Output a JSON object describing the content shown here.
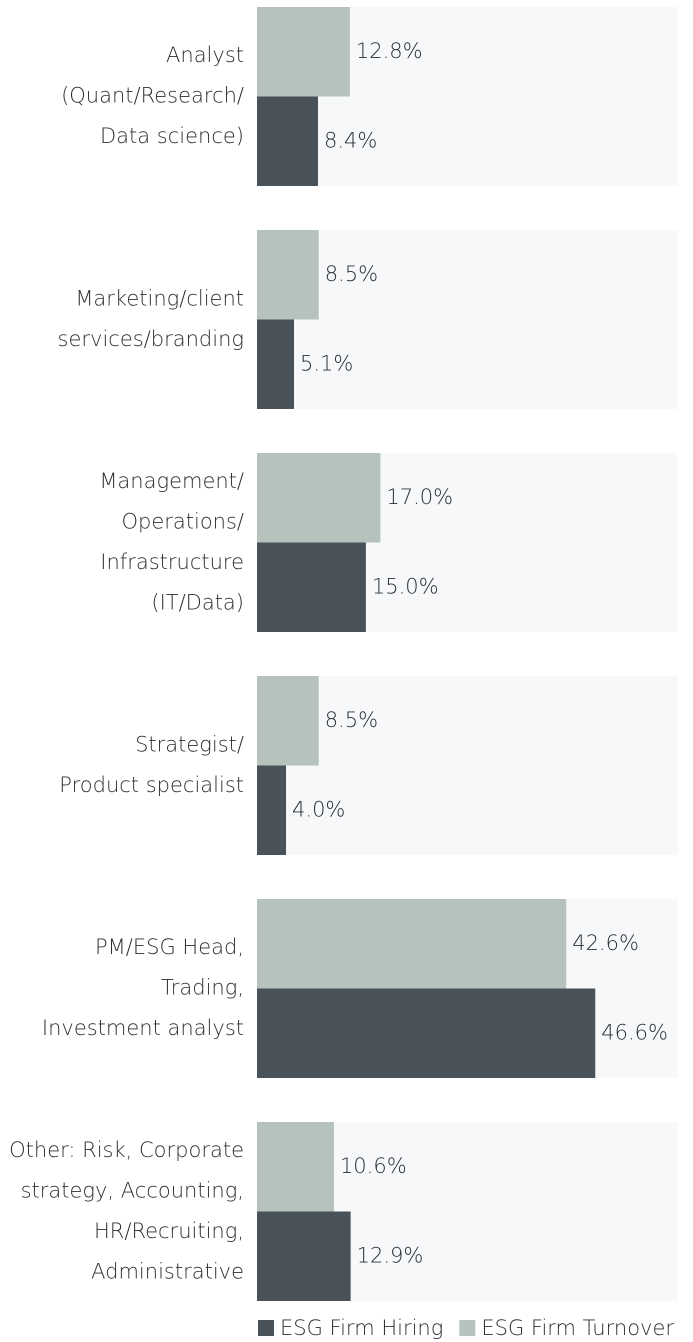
{
  "chart_data": {
    "type": "hbar",
    "categories": [
      [
        "Analyst",
        "(Quant/Research/",
        "Data science)"
      ],
      [
        "Marketing/client",
        "services/branding"
      ],
      [
        "Management/",
        "Operations/",
        "Infrastructure",
        "(IT/Data)"
      ],
      [
        "Strategist/",
        "Product specialist"
      ],
      [
        "PM/ESG Head,",
        "Trading,",
        "Investment analyst"
      ],
      [
        "Other: Risk, Corporate",
        "strategy, Accounting,",
        "HR/Recruiting,",
        "Administrative"
      ]
    ],
    "series": [
      {
        "name": "ESG Firm Turnover",
        "color": "#b5c3bc",
        "values": [
          12.8,
          8.5,
          17.0,
          8.5,
          42.6,
          10.6
        ],
        "value_labels": [
          "12.8%",
          "8.5%",
          "17.0%",
          "8.5%",
          "42.6%",
          "10.6%"
        ]
      },
      {
        "name": "ESG Firm Hiring",
        "color": "#4a5259",
        "values": [
          8.4,
          5.1,
          15.0,
          4.0,
          46.6,
          12.9
        ],
        "value_labels": [
          "8.4%",
          "5.1%",
          "15.0%",
          "4.0%",
          "46.6%",
          "12.9%"
        ]
      }
    ],
    "legend_order": [
      "ESG Firm Hiring",
      "ESG Firm Turnover"
    ],
    "panel_color": "#f7f8fa",
    "xlim": [
      0,
      58
    ]
  }
}
